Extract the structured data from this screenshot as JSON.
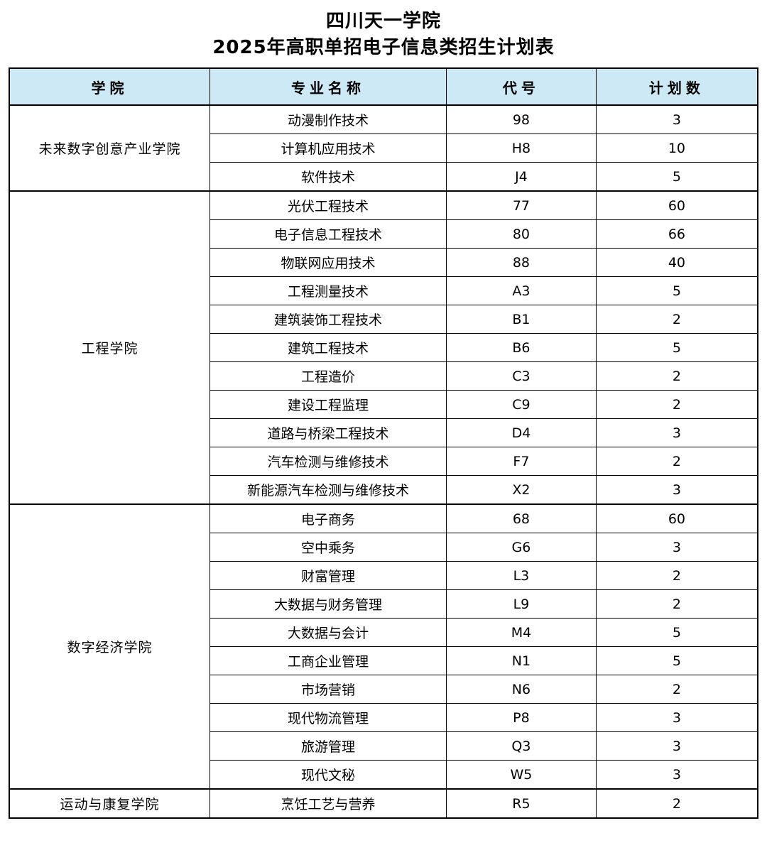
{
  "title": {
    "line1": "四川天一学院",
    "line2": "2025年高职单招电子信息类招生计划表"
  },
  "colors": {
    "header_bg": "#cde9f6",
    "border": "#000000"
  },
  "table": {
    "headers": [
      "学院",
      "专业名称",
      "代号",
      "计划数"
    ],
    "groups": [
      {
        "college": "未来数字创意产业学院",
        "majors": [
          {
            "name": "动漫制作技术",
            "code": "98",
            "plan": "3"
          },
          {
            "name": "计算机应用技术",
            "code": "H8",
            "plan": "10"
          },
          {
            "name": "软件技术",
            "code": "J4",
            "plan": "5"
          }
        ]
      },
      {
        "college": "工程学院",
        "majors": [
          {
            "name": "光伏工程技术",
            "code": "77",
            "plan": "60"
          },
          {
            "name": "电子信息工程技术",
            "code": "80",
            "plan": "66"
          },
          {
            "name": "物联网应用技术",
            "code": "88",
            "plan": "40"
          },
          {
            "name": "工程测量技术",
            "code": "A3",
            "plan": "5"
          },
          {
            "name": "建筑装饰工程技术",
            "code": "B1",
            "plan": "2"
          },
          {
            "name": "建筑工程技术",
            "code": "B6",
            "plan": "5"
          },
          {
            "name": "工程造价",
            "code": "C3",
            "plan": "2"
          },
          {
            "name": "建设工程监理",
            "code": "C9",
            "plan": "2"
          },
          {
            "name": "道路与桥梁工程技术",
            "code": "D4",
            "plan": "3"
          },
          {
            "name": "汽车检测与维修技术",
            "code": "F7",
            "plan": "2"
          },
          {
            "name": "新能源汽车检测与维修技术",
            "code": "X2",
            "plan": "3"
          }
        ]
      },
      {
        "college": "数字经济学院",
        "majors": [
          {
            "name": "电子商务",
            "code": "68",
            "plan": "60"
          },
          {
            "name": "空中乘务",
            "code": "G6",
            "plan": "3"
          },
          {
            "name": "财富管理",
            "code": "L3",
            "plan": "2"
          },
          {
            "name": "大数据与财务管理",
            "code": "L9",
            "plan": "2"
          },
          {
            "name": "大数据与会计",
            "code": "M4",
            "plan": "5"
          },
          {
            "name": "工商企业管理",
            "code": "N1",
            "plan": "5"
          },
          {
            "name": "市场营销",
            "code": "N6",
            "plan": "2"
          },
          {
            "name": "现代物流管理",
            "code": "P8",
            "plan": "3"
          },
          {
            "name": "旅游管理",
            "code": "Q3",
            "plan": "3"
          },
          {
            "name": "现代文秘",
            "code": "W5",
            "plan": "3"
          }
        ]
      },
      {
        "college": "运动与康复学院",
        "majors": [
          {
            "name": "烹饪工艺与营养",
            "code": "R5",
            "plan": "2"
          }
        ]
      }
    ]
  }
}
